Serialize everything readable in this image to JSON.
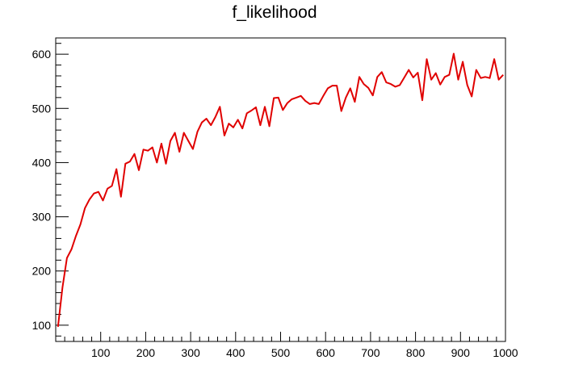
{
  "chart_data": {
    "type": "line",
    "title": "f_likelihood",
    "xlabel": "",
    "ylabel": "",
    "xlim": [
      0,
      1000
    ],
    "ylim": [
      70,
      630
    ],
    "grid": false,
    "legend": "none",
    "line_color": "#e00000",
    "x_ticks_labeled": [
      100,
      200,
      300,
      400,
      500,
      600,
      700,
      800,
      900,
      1000
    ],
    "y_ticks_labeled": [
      100,
      200,
      300,
      400,
      500,
      600
    ],
    "series": [
      {
        "x": [
          5,
          15,
          25,
          35,
          45,
          55,
          65,
          75,
          85,
          95,
          105,
          115,
          125,
          135,
          145,
          155,
          165,
          175,
          185,
          195,
          205,
          215,
          225,
          235,
          245,
          255,
          265,
          275,
          285,
          295,
          305,
          315,
          325,
          335,
          345,
          355,
          365,
          375,
          385,
          395,
          405,
          415,
          425,
          435,
          445,
          455,
          465,
          475,
          485,
          495,
          505,
          515,
          525,
          535,
          545,
          555,
          565,
          575,
          585,
          595,
          605,
          615,
          625,
          635,
          645,
          655,
          665,
          675,
          685,
          695,
          705,
          715,
          725,
          735,
          745,
          755,
          765,
          775,
          785,
          795,
          805,
          815,
          825,
          835,
          845,
          855,
          865,
          875,
          885,
          895,
          905,
          915,
          925,
          935,
          945,
          955,
          965,
          975,
          985,
          995
        ],
        "values": [
          97,
          170,
          224,
          240,
          265,
          286,
          316,
          332,
          343,
          346,
          330,
          352,
          357,
          388,
          337,
          398,
          402,
          416,
          386,
          424,
          422,
          428,
          400,
          435,
          398,
          440,
          455,
          420,
          455,
          440,
          425,
          457,
          474,
          481,
          469,
          484,
          503,
          450,
          472,
          465,
          479,
          463,
          491,
          496,
          502,
          469,
          503,
          467,
          519,
          520,
          497,
          510,
          517,
          520,
          523,
          514,
          508,
          510,
          508,
          523,
          537,
          542,
          542,
          495,
          520,
          537,
          512,
          558,
          545,
          538,
          524,
          558,
          567,
          548,
          545,
          540,
          543,
          557,
          571,
          557,
          566,
          515,
          591,
          553,
          565,
          544,
          558,
          562,
          601,
          553,
          586,
          543,
          522,
          571,
          556,
          558,
          556,
          591,
          553,
          562
        ]
      }
    ]
  }
}
